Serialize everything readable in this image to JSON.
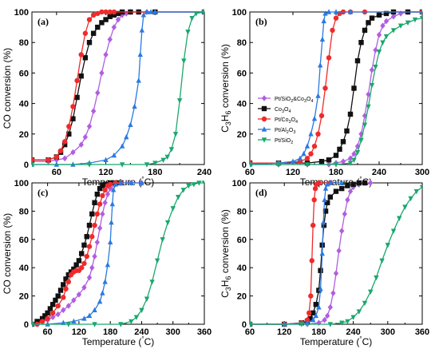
{
  "colors": {
    "Pt/SiO2&Co3O4": "#b05ee0",
    "Co3O4": "#111111",
    "Pt/Co3O4": "#f02a2a",
    "Pt/Al2O3": "#2a7ae0",
    "Pt/SiO2": "#1aa86e"
  },
  "markers": {
    "Pt/SiO2&Co3O4": "diamond",
    "Co3O4": "square",
    "Pt/Co3O4": "circle",
    "Pt/Al2O3": "triangle-up",
    "Pt/SiO2": "triangle-down"
  },
  "legend": {
    "panel": "b",
    "placement": "center-left",
    "entries": [
      {
        "key": "Pt/SiO2&Co3O4",
        "main": "Pt/SiO",
        "sub": "2",
        "rest": "&Co",
        "sub2": "3",
        "rest2": "O",
        "sub3": "4"
      },
      {
        "key": "Co3O4",
        "main": "Co",
        "sub": "3",
        "rest": "O",
        "sub2": "4",
        "rest2": "",
        "sub3": ""
      },
      {
        "key": "Pt/Co3O4",
        "main": "Pt/Co",
        "sub": "3",
        "rest": "O",
        "sub2": "4",
        "rest2": "",
        "sub3": ""
      },
      {
        "key": "Pt/Al2O3",
        "main": "Pt/Al",
        "sub": "2",
        "rest": "O",
        "sub2": "3",
        "rest2": "",
        "sub3": ""
      },
      {
        "key": "Pt/SiO2",
        "main": "Pt/SiO",
        "sub": "2",
        "rest": "",
        "sub2": "",
        "rest2": "",
        "sub3": ""
      }
    ]
  },
  "chart_data": [
    {
      "type": "line",
      "label": "(a)",
      "xlabel": "Temperature (°C)",
      "ylabel": "CO conversion (%)",
      "xlim": [
        30,
        240
      ],
      "ylim": [
        0,
        100
      ],
      "xticks": [
        60,
        120,
        180,
        240
      ],
      "yticks": [
        0,
        20,
        40,
        60,
        80,
        100
      ],
      "series": [
        {
          "key": "Pt/SiO2&Co3O4",
          "x": [
            30,
            50,
            60,
            70,
            80,
            90,
            95,
            100,
            105,
            110,
            115,
            120,
            125,
            130,
            135,
            140,
            145,
            150,
            160,
            170,
            180,
            240
          ],
          "y": [
            2,
            2,
            3,
            4,
            8,
            13,
            18,
            25,
            35,
            47,
            60,
            72,
            82,
            90,
            95,
            98,
            99,
            100,
            100,
            100,
            100,
            100
          ]
        },
        {
          "key": "Co3O4",
          "x": [
            30,
            50,
            60,
            65,
            70,
            75,
            80,
            85,
            90,
            95,
            100,
            105,
            110,
            115,
            120,
            125,
            130,
            135,
            140,
            150,
            160,
            180,
            240
          ],
          "y": [
            3,
            3,
            5,
            8,
            13,
            20,
            30,
            44,
            58,
            70,
            80,
            86,
            90,
            93,
            95,
            97,
            98,
            99,
            100,
            100,
            100,
            100,
            100
          ]
        },
        {
          "key": "Pt/Co3O4",
          "x": [
            30,
            50,
            60,
            65,
            70,
            75,
            80,
            85,
            90,
            95,
            100,
            105,
            110,
            115,
            120,
            125,
            130,
            240
          ],
          "y": [
            3,
            3,
            5,
            9,
            15,
            25,
            38,
            55,
            72,
            86,
            95,
            98,
            99,
            100,
            100,
            100,
            100,
            100
          ]
        },
        {
          "key": "Pt/Al2O3",
          "x": [
            30,
            60,
            80,
            100,
            120,
            130,
            140,
            145,
            150,
            155,
            160,
            162,
            164,
            166,
            170,
            175,
            180,
            240
          ],
          "y": [
            0,
            0,
            0,
            1,
            3,
            6,
            12,
            18,
            26,
            38,
            55,
            72,
            88,
            98,
            100,
            100,
            100,
            100
          ]
        },
        {
          "key": "Pt/SiO2",
          "x": [
            30,
            100,
            140,
            170,
            180,
            190,
            195,
            200,
            205,
            210,
            215,
            220,
            225,
            230,
            240
          ],
          "y": [
            0,
            0,
            0,
            0,
            1,
            3,
            5,
            10,
            20,
            42,
            68,
            87,
            96,
            99,
            100
          ]
        }
      ]
    },
    {
      "type": "line",
      "label": "(b)",
      "xlabel": "Temperature (°C)",
      "ylabel": "C3H6 conversion (%)",
      "xlim": [
        60,
        300
      ],
      "ylim": [
        0,
        100
      ],
      "xticks": [
        60,
        120,
        180,
        240,
        300
      ],
      "yticks": [
        0,
        20,
        40,
        60,
        80,
        100
      ],
      "series": [
        {
          "key": "Pt/SiO2&Co3O4",
          "x": [
            60,
            100,
            140,
            170,
            180,
            190,
            200,
            205,
            210,
            215,
            220,
            225,
            230,
            235,
            240,
            245,
            250,
            260,
            270,
            280,
            300
          ],
          "y": [
            0,
            0,
            0,
            0,
            1,
            2,
            4,
            7,
            12,
            20,
            32,
            46,
            62,
            75,
            85,
            91,
            94,
            97,
            99,
            100,
            100
          ]
        },
        {
          "key": "Co3O4",
          "x": [
            60,
            100,
            140,
            160,
            170,
            180,
            185,
            190,
            195,
            200,
            205,
            210,
            215,
            220,
            225,
            230,
            240,
            250,
            260,
            280,
            300
          ],
          "y": [
            1,
            1,
            1,
            2,
            3,
            6,
            10,
            15,
            22,
            33,
            50,
            68,
            80,
            88,
            93,
            96,
            98,
            99,
            100,
            100,
            100
          ]
        },
        {
          "key": "Pt/Co3O4",
          "x": [
            60,
            100,
            130,
            140,
            145,
            150,
            155,
            160,
            165,
            170,
            175,
            180,
            185,
            190,
            200,
            220,
            300
          ],
          "y": [
            1,
            1,
            2,
            4,
            7,
            12,
            20,
            32,
            50,
            70,
            88,
            96,
            99,
            100,
            100,
            100,
            100
          ]
        },
        {
          "key": "Pt/Al2O3",
          "x": [
            60,
            100,
            120,
            130,
            135,
            140,
            145,
            150,
            155,
            158,
            161,
            163,
            165,
            170,
            180,
            200,
            300
          ],
          "y": [
            0,
            1,
            2,
            4,
            7,
            12,
            20,
            30,
            45,
            65,
            82,
            94,
            99,
            100,
            100,
            100,
            100
          ]
        },
        {
          "key": "Pt/SiO2",
          "x": [
            60,
            100,
            140,
            180,
            200,
            205,
            210,
            215,
            220,
            225,
            230,
            235,
            240,
            245,
            250,
            260,
            270,
            280,
            290,
            300
          ],
          "y": [
            0,
            0,
            0,
            0,
            1,
            3,
            8,
            16,
            26,
            38,
            52,
            64,
            74,
            80,
            84,
            88,
            91,
            93,
            95,
            96
          ]
        }
      ]
    },
    {
      "type": "line",
      "label": "(c)",
      "xlabel": "Temperature (°C)",
      "ylabel": "CO conversion (%)",
      "xlim": [
        30,
        360
      ],
      "ylim": [
        0,
        100
      ],
      "xticks": [
        60,
        120,
        180,
        240,
        300,
        360
      ],
      "yticks": [
        0,
        20,
        40,
        60,
        80,
        100
      ],
      "series": [
        {
          "key": "Pt/SiO2&Co3O4",
          "x": [
            30,
            40,
            50,
            60,
            70,
            80,
            90,
            100,
            110,
            120,
            130,
            140,
            145,
            150,
            155,
            160,
            165,
            170,
            175,
            180,
            190,
            200,
            220,
            240
          ],
          "y": [
            0,
            1,
            2,
            3,
            5,
            7,
            10,
            13,
            17,
            21,
            26,
            33,
            40,
            48,
            58,
            68,
            78,
            86,
            92,
            96,
            99,
            100,
            100,
            100
          ]
        },
        {
          "key": "Co3O4",
          "x": [
            30,
            40,
            50,
            55,
            60,
            65,
            70,
            75,
            80,
            85,
            90,
            95,
            100,
            105,
            110,
            115,
            120,
            125,
            130,
            135,
            140,
            145,
            150,
            155,
            160,
            165,
            170,
            180,
            190,
            200
          ],
          "y": [
            0,
            2,
            4,
            6,
            8,
            11,
            14,
            17,
            20,
            24,
            28,
            32,
            35,
            37,
            39,
            42,
            45,
            50,
            56,
            62,
            70,
            78,
            86,
            92,
            96,
            98,
            99,
            100,
            100,
            100
          ]
        },
        {
          "key": "Pt/Co3O4",
          "x": [
            30,
            40,
            50,
            60,
            70,
            80,
            90,
            95,
            100,
            105,
            110,
            115,
            120,
            125,
            130,
            135,
            140,
            145,
            150,
            155,
            160,
            165,
            170,
            175,
            180,
            190,
            200
          ],
          "y": [
            0,
            0,
            2,
            4,
            8,
            13,
            19,
            25,
            30,
            35,
            37,
            38,
            38,
            40,
            43,
            48,
            55,
            62,
            70,
            78,
            85,
            91,
            95,
            98,
            99,
            100,
            100
          ]
        },
        {
          "key": "Pt/Al2O3",
          "x": [
            30,
            60,
            90,
            110,
            130,
            140,
            150,
            160,
            165,
            170,
            175,
            180,
            182,
            184,
            186,
            190,
            200,
            220,
            240
          ],
          "y": [
            0,
            0,
            1,
            2,
            4,
            6,
            10,
            16,
            22,
            30,
            42,
            58,
            72,
            85,
            95,
            99,
            100,
            100,
            100
          ]
        },
        {
          "key": "Pt/SiO2",
          "x": [
            30,
            100,
            150,
            200,
            220,
            230,
            240,
            250,
            260,
            270,
            280,
            290,
            300,
            310,
            320,
            330,
            340,
            350,
            360
          ],
          "y": [
            0,
            0,
            0,
            0,
            2,
            5,
            10,
            18,
            30,
            45,
            60,
            72,
            82,
            90,
            95,
            98,
            99,
            100,
            100
          ]
        }
      ]
    },
    {
      "type": "line",
      "label": "(d)",
      "xlabel": "Temperature (°C)",
      "ylabel": "C3H6 conversion (%)",
      "xlim": [
        60,
        360
      ],
      "ylim": [
        0,
        100
      ],
      "xticks": [
        60,
        120,
        180,
        240,
        300,
        360
      ],
      "yticks": [
        0,
        20,
        40,
        60,
        80,
        100
      ],
      "series": [
        {
          "key": "Pt/SiO2&Co3O4",
          "x": [
            60,
            120,
            160,
            180,
            190,
            195,
            200,
            205,
            210,
            215,
            220,
            225,
            230,
            235,
            240,
            250,
            260,
            270
          ],
          "y": [
            0,
            0,
            0,
            1,
            3,
            6,
            12,
            22,
            36,
            52,
            66,
            78,
            88,
            94,
            97,
            99,
            100,
            100
          ]
        },
        {
          "key": "Co3O4",
          "x": [
            60,
            120,
            150,
            160,
            165,
            170,
            175,
            180,
            183,
            186,
            189,
            192,
            195,
            200,
            210,
            220,
            230,
            240,
            250,
            260
          ],
          "y": [
            0,
            0,
            1,
            2,
            4,
            8,
            14,
            24,
            38,
            56,
            70,
            80,
            86,
            90,
            94,
            96,
            98,
            99,
            100,
            100
          ]
        },
        {
          "key": "Pt/Co3O4",
          "x": [
            60,
            120,
            150,
            160,
            163,
            166,
            168,
            170,
            172,
            174,
            176,
            180,
            200
          ],
          "y": [
            0,
            0,
            1,
            3,
            8,
            20,
            45,
            70,
            88,
            96,
            99,
            100,
            100
          ]
        },
        {
          "key": "Pt/Al2O3",
          "x": [
            60,
            120,
            160,
            170,
            175,
            180,
            183,
            186,
            188,
            190,
            192,
            195,
            200,
            220
          ],
          "y": [
            0,
            0,
            1,
            3,
            6,
            12,
            25,
            50,
            72,
            88,
            96,
            99,
            100,
            100
          ]
        },
        {
          "key": "Pt/SiO2",
          "x": [
            60,
            150,
            200,
            220,
            230,
            240,
            250,
            260,
            270,
            280,
            290,
            300,
            310,
            320,
            330,
            340,
            350,
            360
          ],
          "y": [
            0,
            0,
            0,
            1,
            2,
            5,
            9,
            15,
            23,
            33,
            45,
            56,
            66,
            75,
            83,
            89,
            94,
            97
          ]
        }
      ]
    }
  ]
}
